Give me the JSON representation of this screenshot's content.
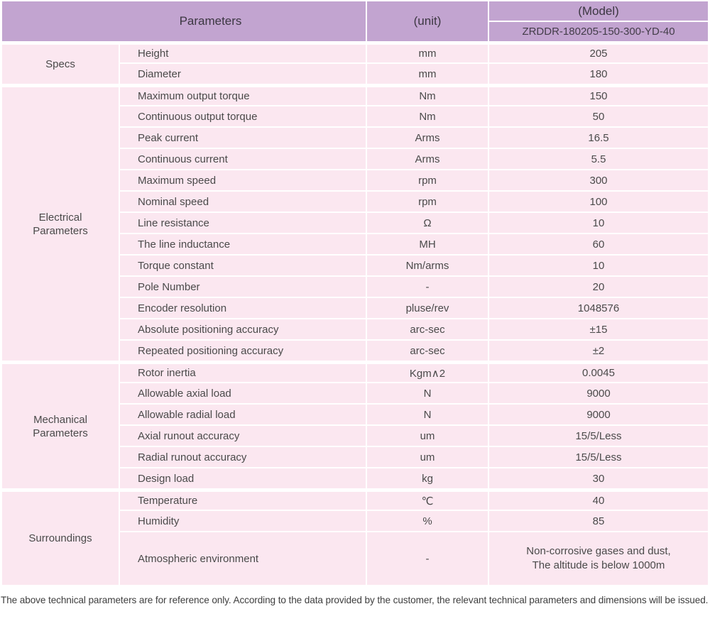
{
  "colors": {
    "header_bg": "#c2a4d0",
    "row_bg": "#fbe7f0",
    "separator": "#ffffff",
    "text": "#4a4a4a"
  },
  "table": {
    "header": {
      "parameters": "Parameters",
      "unit": "(unit)",
      "model_label": "(Model)",
      "model_value": "ZRDDR-180205-150-300-YD-40"
    },
    "sections": [
      {
        "group": "Specs",
        "rows": [
          {
            "param": "Height",
            "unit": "mm",
            "value": "205"
          },
          {
            "param": "Diameter",
            "unit": "mm",
            "value": "180"
          }
        ]
      },
      {
        "group": "Electrical Parameters",
        "rows": [
          {
            "param": "Maximum output torque",
            "unit": "Nm",
            "value": "150"
          },
          {
            "param": "Continuous output torque",
            "unit": "Nm",
            "value": "50"
          },
          {
            "param": "Peak current",
            "unit": "Arms",
            "value": "16.5"
          },
          {
            "param": "Continuous current",
            "unit": "Arms",
            "value": "5.5"
          },
          {
            "param": "Maximum speed",
            "unit": "rpm",
            "value": "300"
          },
          {
            "param": "Nominal speed",
            "unit": "rpm",
            "value": "100"
          },
          {
            "param": "Line resistance",
            "unit": "Ω",
            "value": "10"
          },
          {
            "param": "The line inductance",
            "unit": "MH",
            "value": "60"
          },
          {
            "param": "Torque constant",
            "unit": "Nm/arms",
            "value": "10"
          },
          {
            "param": "Pole Number",
            "unit": "-",
            "value": "20"
          },
          {
            "param": "Encoder resolution",
            "unit": "pluse/rev",
            "value": "1048576"
          },
          {
            "param": "Absolute positioning accuracy",
            "unit": "arc-sec",
            "value": "±15"
          },
          {
            "param": "Repeated positioning accuracy",
            "unit": "arc-sec",
            "value": "±2"
          }
        ]
      },
      {
        "group": "Mechanical Parameters",
        "rows": [
          {
            "param": "Rotor inertia",
            "unit": "Kgm∧2",
            "value": "0.0045"
          },
          {
            "param": "Allowable axial load",
            "unit": "N",
            "value": "9000"
          },
          {
            "param": "Allowable radial load",
            "unit": "N",
            "value": "9000"
          },
          {
            "param": "Axial runout accuracy",
            "unit": "um",
            "value": "15/5/Less"
          },
          {
            "param": "Radial runout accuracy",
            "unit": "um",
            "value": "15/5/Less"
          },
          {
            "param": "Design load",
            "unit": "kg",
            "value": "30"
          }
        ]
      },
      {
        "group": "Surroundings",
        "rows": [
          {
            "param": "Temperature",
            "unit": "℃",
            "value": "40"
          },
          {
            "param": "Humidity",
            "unit": "%",
            "value": "85"
          },
          {
            "param": "Atmospheric environment",
            "unit": "-",
            "value": "Non-corrosive gases and dust,\nThe altitude is below 1000m"
          }
        ]
      }
    ]
  },
  "footer": {
    "note": "The above technical parameters are for reference only. According to the data provided by the customer, the relevant technical parameters and dimensions will be issued."
  }
}
